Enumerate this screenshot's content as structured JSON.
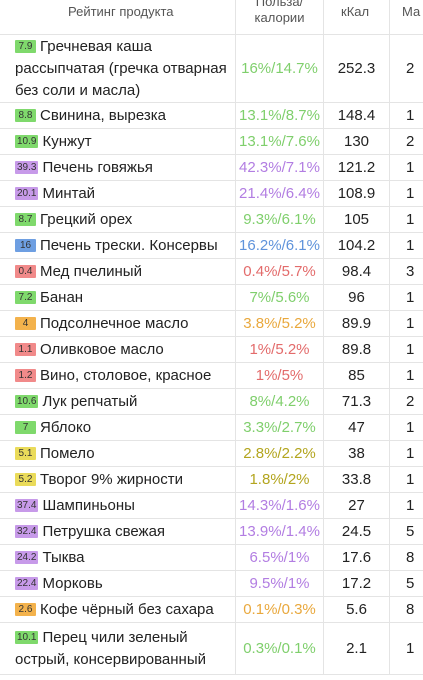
{
  "header": {
    "col_name": "Рейтинг продукта",
    "col_ratio_line1": "Польза/",
    "col_ratio_line2": "калории",
    "col_kcal": "кКал",
    "col_extra": "Ма"
  },
  "rows": [
    {
      "badge": "7.9",
      "c": "g",
      "name": "Гречневая каша рассыпчатая (гречка отварная без соли и масла)",
      "ratio": "16%/14.7%",
      "kcal": "252.3",
      "extra": "2"
    },
    {
      "badge": "8.8",
      "c": "g",
      "name": "Свинина, вырезка",
      "ratio": "13.1%/8.7%",
      "kcal": "148.4",
      "extra": "1"
    },
    {
      "badge": "10.9",
      "c": "g",
      "name": "Кунжут",
      "ratio": "13.1%/7.6%",
      "kcal": "130",
      "extra": "2"
    },
    {
      "badge": "39.3",
      "c": "p",
      "name": "Печень говяжья",
      "ratio": "42.3%/7.1%",
      "kcal": "121.2",
      "extra": "1"
    },
    {
      "badge": "20.1",
      "c": "p",
      "name": "Минтай",
      "ratio": "21.4%/6.4%",
      "kcal": "108.9",
      "extra": "1"
    },
    {
      "badge": "8.7",
      "c": "g",
      "name": "Грецкий орех",
      "ratio": "9.3%/6.1%",
      "kcal": "105",
      "extra": "1"
    },
    {
      "badge": "16",
      "c": "b",
      "name": "Печень трески. Консервы",
      "ratio": "16.2%/6.1%",
      "kcal": "104.2",
      "extra": "1"
    },
    {
      "badge": "0.4",
      "c": "r",
      "name": "Мед пчелиный",
      "ratio": "0.4%/5.7%",
      "kcal": "98.4",
      "extra": "3"
    },
    {
      "badge": "7.2",
      "c": "g",
      "name": "Банан",
      "ratio": "7%/5.6%",
      "kcal": "96",
      "extra": "1"
    },
    {
      "badge": "4",
      "c": "o",
      "name": "Подсолнечное масло",
      "ratio": "3.8%/5.2%",
      "kcal": "89.9",
      "extra": "1"
    },
    {
      "badge": "1.1",
      "c": "r",
      "name": "Оливковое масло",
      "ratio": "1%/5.2%",
      "kcal": "89.8",
      "extra": "1"
    },
    {
      "badge": "1.2",
      "c": "r",
      "name": "Вино, столовое, красное",
      "ratio": "1%/5%",
      "kcal": "85",
      "extra": "1"
    },
    {
      "badge": "10.6",
      "c": "g",
      "name": "Лук репчатый",
      "ratio": "8%/4.2%",
      "kcal": "71.3",
      "extra": "2"
    },
    {
      "badge": "7",
      "c": "g",
      "name": "Яблоко",
      "ratio": "3.3%/2.7%",
      "kcal": "47",
      "extra": "1"
    },
    {
      "badge": "5.1",
      "c": "y",
      "name": "Помело",
      "ratio": "2.8%/2.2%",
      "kcal": "38",
      "extra": "1"
    },
    {
      "badge": "5.2",
      "c": "y",
      "name": "Творог 9% жирности",
      "ratio": "1.8%/2%",
      "kcal": "33.8",
      "extra": "1"
    },
    {
      "badge": "37.4",
      "c": "p",
      "name": "Шампиньоны",
      "ratio": "14.3%/1.6%",
      "kcal": "27",
      "extra": "1"
    },
    {
      "badge": "32.4",
      "c": "p",
      "name": "Петрушка свежая",
      "ratio": "13.9%/1.4%",
      "kcal": "24.5",
      "extra": "5"
    },
    {
      "badge": "24.2",
      "c": "p",
      "name": "Тыква",
      "ratio": "6.5%/1%",
      "kcal": "17.6",
      "extra": "8"
    },
    {
      "badge": "22.4",
      "c": "p",
      "name": "Морковь",
      "ratio": "9.5%/1%",
      "kcal": "17.2",
      "extra": "5"
    },
    {
      "badge": "2.6",
      "c": "o",
      "name": "Кофе чёрный без сахара",
      "ratio": "0.1%/0.3%",
      "kcal": "5.6",
      "extra": "8"
    },
    {
      "badge": "10.1",
      "c": "g",
      "name": "Перец чили зеленый острый, консервированный",
      "ratio": "0.3%/0.1%",
      "kcal": "2.1",
      "extra": "1"
    }
  ],
  "colors": {
    "g": "#7fcf6c",
    "p": "#b27de2",
    "b": "#5f93db",
    "r": "#e36b6b",
    "o": "#e9a83d",
    "y": "#b3a51e"
  }
}
